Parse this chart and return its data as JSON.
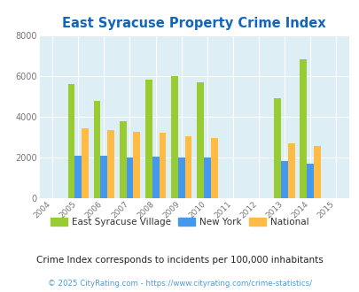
{
  "title": "East Syracuse Property Crime Index",
  "xlim": [
    2003.5,
    2015.5
  ],
  "ylim": [
    0,
    8000
  ],
  "yticks": [
    0,
    2000,
    4000,
    6000,
    8000
  ],
  "data": {
    "east_syracuse": {
      "years": [
        2005,
        2006,
        2007,
        2008,
        2009,
        2010,
        2013,
        2014
      ],
      "values": [
        5600,
        4800,
        3800,
        5800,
        6000,
        5700,
        4900,
        6800
      ],
      "color": "#99cc33"
    },
    "new_york": {
      "years": [
        2005,
        2006,
        2007,
        2008,
        2009,
        2010,
        2013,
        2014
      ],
      "values": [
        2100,
        2100,
        2000,
        2050,
        2000,
        2000,
        1850,
        1700
      ],
      "color": "#4499ee"
    },
    "national": {
      "years": [
        2005,
        2006,
        2007,
        2008,
        2009,
        2010,
        2013,
        2014
      ],
      "values": [
        3450,
        3350,
        3250,
        3200,
        3050,
        2950,
        2700,
        2550
      ],
      "color": "#ffbb44"
    }
  },
  "all_years": [
    2004,
    2005,
    2006,
    2007,
    2008,
    2009,
    2010,
    2011,
    2012,
    2013,
    2014,
    2015
  ],
  "legend_labels": [
    "East Syracuse Village",
    "New York",
    "National"
  ],
  "legend_colors": [
    "#99cc33",
    "#4499ee",
    "#ffbb44"
  ],
  "subtitle": "Crime Index corresponds to incidents per 100,000 inhabitants",
  "footer": "© 2025 CityRating.com - https://www.cityrating.com/crime-statistics/",
  "bar_width": 0.27,
  "background_color": "#deeef5",
  "title_color": "#1166bb",
  "grid_color": "#ffffff",
  "subtitle_color": "#222222",
  "footer_color": "#5599cc"
}
